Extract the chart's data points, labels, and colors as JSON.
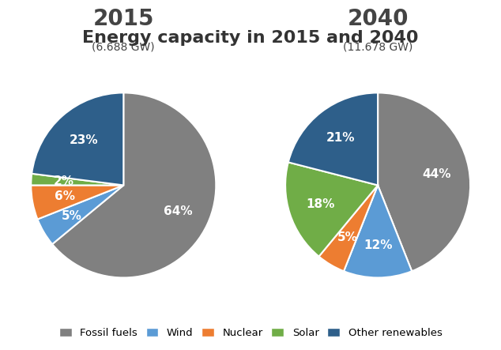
{
  "title": "Energy capacity in 2015 and 2040",
  "title_fontsize": 16,
  "pie2015": {
    "year": "2015",
    "capacity": "(6.688 GW)",
    "values": [
      64,
      5,
      6,
      2,
      23
    ],
    "colors": [
      "#808080",
      "#5b9bd5",
      "#ed7d31",
      "#70ad47",
      "#2e5f8a"
    ],
    "startangle": 90
  },
  "pie2040": {
    "year": "2040",
    "capacity": "(11.678 GW)",
    "values": [
      44,
      12,
      5,
      18,
      21
    ],
    "colors": [
      "#808080",
      "#5b9bd5",
      "#ed7d31",
      "#70ad47",
      "#2e5f8a"
    ],
    "startangle": 90
  },
  "legend_labels": [
    "Fossil fuels",
    "Wind",
    "Nuclear",
    "Solar",
    "Other renewables"
  ],
  "legend_colors": [
    "#808080",
    "#5b9bd5",
    "#ed7d31",
    "#70ad47",
    "#2e5f8a"
  ],
  "background_color": "#ffffff",
  "label_fontsize": 11,
  "year_fontsize": 20,
  "capacity_fontsize": 10
}
